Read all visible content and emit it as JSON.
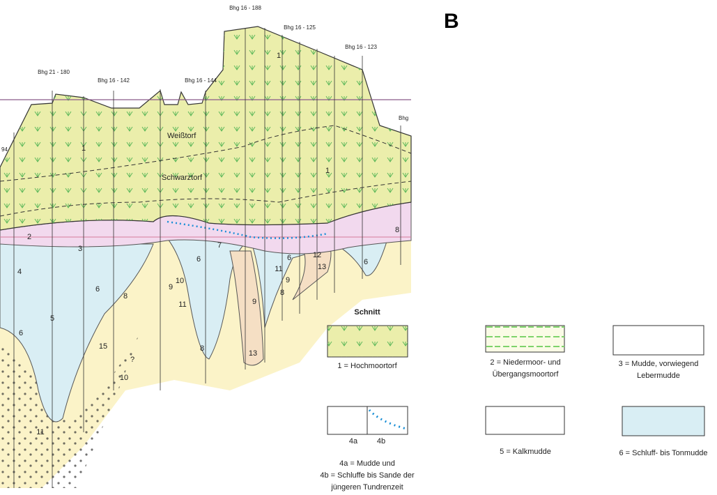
{
  "panel_label": "B",
  "boreholes": [
    "Bhg 21 - 180",
    "Bhg 16 - 142",
    "Bhg 16 - 144",
    "Bhg 16 - 188",
    "Bhg 16 - 125",
    "Bhg 16 - 123",
    "Bhg"
  ],
  "edge_label": "94",
  "peat_labels": [
    "Weißtorf",
    "Schwarztorf"
  ],
  "layer_labels": [
    "1",
    "1",
    "1",
    "2",
    "3",
    "4",
    "5",
    "6",
    "6",
    "8",
    "15",
    "10",
    "?",
    "11",
    "9",
    "6",
    "7",
    "10",
    "11",
    "8",
    "9",
    "13",
    "11",
    "9",
    "8",
    "12",
    "13",
    "6",
    "8",
    "6"
  ],
  "legend": {
    "title": "Schnitt",
    "items": [
      {
        "lines": [
          "1 = Hochmoortorf"
        ]
      },
      {
        "lines": [
          "2 = Niedermoor- und",
          "Übergangsmoortorf"
        ]
      },
      {
        "lines": [
          "3 = Mudde, vorwiegend",
          "Lebermudde"
        ]
      },
      {
        "sublabels": [
          "4a",
          "4b"
        ],
        "lines": [
          "4a = Mudde und",
          "4b = Schluffe bis Sande der",
          "jüngeren Tundrenzeit"
        ]
      },
      {
        "lines": [
          "5 = Kalkmudde"
        ]
      },
      {
        "lines": [
          "6 = Schluff- bis Tonmudde"
        ]
      }
    ]
  }
}
